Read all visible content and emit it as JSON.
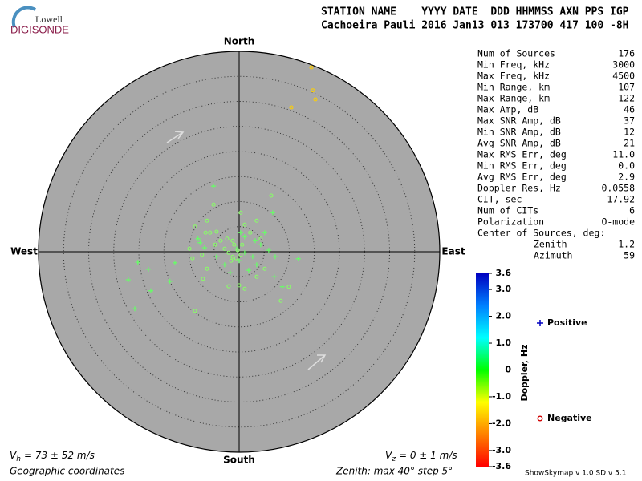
{
  "header": {
    "logo_top": "Lowell",
    "logo_bottom": "DIGISONDE",
    "line1": "STATION NAME    YYYY DATE  DDD HHMMSS AXN PPS IGP",
    "line2": "Cachoeira Pauli 2016 Jan13 013 173700 417 100 -8H"
  },
  "stats": [
    [
      "Num of Sources",
      "176"
    ],
    [
      "Min Freq, kHz",
      "3000"
    ],
    [
      "Max Freq, kHz",
      "4500"
    ],
    [
      "Min Range, km",
      "107"
    ],
    [
      "Max Range, km",
      "122"
    ],
    [
      "Max Amp, dB",
      "46"
    ],
    [
      "Max SNR Amp, dB",
      "37"
    ],
    [
      "Min SNR Amp, dB",
      "12"
    ],
    [
      "Avg SNR Amp, dB",
      "21"
    ],
    [
      "Max RMS Err, deg",
      "11.0"
    ],
    [
      "Min RMS Err, deg",
      "0.0"
    ],
    [
      "Avg RMS Err, deg",
      "2.9"
    ],
    [
      "Doppler Res, Hz",
      "0.0558"
    ],
    [
      "CIT, sec",
      "17.92"
    ],
    [
      "Num of CITs",
      "6"
    ],
    [
      "Polarization",
      "O-mode"
    ]
  ],
  "center": {
    "title": "Center of Sources, deg:",
    "rows": [
      [
        "Zenith",
        "1.2"
      ],
      [
        "Azimuth",
        "59"
      ]
    ]
  },
  "chart_data": {
    "type": "skymap",
    "directions": {
      "north": "North",
      "south": "South",
      "east": "East",
      "west": "West"
    },
    "rlim": [
      0,
      40
    ],
    "rticks": [
      5,
      10,
      15,
      20,
      25,
      30,
      35,
      40
    ],
    "series": [
      {
        "name": "Positive",
        "color": "#0000c0",
        "marker": "plus",
        "x": [
          -5.1,
          -22.1,
          -20.2,
          -18.1,
          -20.8,
          -13.8,
          -17.6,
          -12.8,
          -8.2,
          -7.8,
          -6.9,
          6.7,
          3.2,
          4.3,
          5.9,
          7.2,
          11.8,
          8.6,
          7.0,
          1.9,
          0,
          -1.8,
          -2.9,
          -4.5,
          1.1,
          2.7,
          3.5,
          -0.5,
          0.3,
          1.1,
          5.1
        ],
        "values": [
          13.1,
          -5.6,
          -2.1,
          -3.5,
          -11.4,
          -5.9,
          -7.8,
          -2.2,
          2.6,
          1.8,
          0.8,
          7.8,
          2.2,
          1.4,
          0.3,
          -1.0,
          -1.4,
          -7.0,
          -5.0,
          -3.7,
          -1.8,
          -4.2,
          -2.6,
          -1.0,
          -0.2,
          -1.0,
          -2.6,
          0.6,
          3.8,
          3.0,
          3.8
        ],
        "marker_colors": [
          "#66ff66",
          "#66ff66",
          "#66ff66",
          "#66ff66",
          "#66ff66",
          "#66ff66",
          "#66ff66",
          "#66ff66",
          "#66ff66",
          "#66ff66",
          "#66ff66",
          "#66ff66",
          "#66ff66",
          "#66ff66",
          "#66ff66",
          "#66ff66",
          "#66ff66",
          "#66ff66",
          "#66ff66",
          "#66ff66",
          "#66ff66",
          "#66ff66",
          "#66ff66",
          "#66ff66",
          "#66ff66",
          "#66ff66",
          "#66ff66",
          "#66ff66",
          "#66ff66",
          "#66ff66",
          "#66ff66"
        ]
      },
      {
        "name": "Negative",
        "color": "#d00000",
        "marker": "circle",
        "x": [
          14.4,
          14.7,
          15.2,
          10.4,
          6.4,
          -5.1,
          -6.4,
          -8.8,
          -6.7,
          -5.8,
          -4.5,
          -9.9,
          -9.3,
          -7.4,
          -4.8,
          -3.7,
          -2.4,
          -1.3,
          -1.0,
          -0.3,
          0.3,
          -1.3,
          -2.1,
          -2.9,
          0.3,
          3.5,
          1.1,
          2.2,
          4.3,
          -7.2,
          -6.4,
          -8.8,
          9.9,
          8.3,
          0,
          -2.1,
          1.1,
          3.5,
          5.1,
          0.6,
          -0.6,
          -1.6
        ],
        "values": [
          36.8,
          32.2,
          30.4,
          28.8,
          11.2,
          9.4,
          6.2,
          5.0,
          3.8,
          3.8,
          4.0,
          0.6,
          -1.3,
          -0.6,
          1.4,
          2.2,
          2.6,
          2.2,
          1.4,
          0.3,
          -0.6,
          -1.0,
          -0.2,
          0.6,
          7.8,
          6.2,
          5.4,
          3.8,
          2.6,
          -5.4,
          -3.4,
          -11.8,
          -7.0,
          -9.8,
          -6.7,
          -6.9,
          -7.4,
          -5.0,
          -3.4,
          1.4,
          -1.3,
          -1.8
        ],
        "marker_colors": [
          "#ffd000",
          "#ffd000",
          "#ffd000",
          "#ffd000",
          "#88ff66",
          "#88ff66",
          "#88ff66",
          "#88ff66",
          "#88ff66",
          "#88ff66",
          "#88ff66",
          "#88ff66",
          "#88ff66",
          "#88ff66",
          "#88ff66",
          "#88ff66",
          "#88ff66",
          "#88ff66",
          "#88ff66",
          "#88ff66",
          "#88ff66",
          "#88ff66",
          "#88ff66",
          "#88ff66",
          "#88ff66",
          "#88ff66",
          "#88ff66",
          "#88ff66",
          "#88ff66",
          "#88ff66",
          "#88ff66",
          "#88ff66",
          "#88ff66",
          "#88ff66",
          "#88ff66",
          "#88ff66",
          "#88ff66",
          "#88ff66",
          "#88ff66",
          "#88ff66",
          "#88ff66",
          "#88ff66"
        ]
      }
    ],
    "colorbar": {
      "label": "Doppler, Hz",
      "lim": [
        -3.6,
        3.6
      ],
      "ticks": [
        3.6,
        {
          "value": 3,
          "label": "3.0"
        },
        {
          "value": 2,
          "label": "2.0"
        },
        {
          "value": 1,
          "label": "1.0"
        },
        0,
        {
          "value": -1,
          "label": "-1.0"
        },
        {
          "value": -2,
          "label": "-2.0"
        },
        {
          "value": -3,
          "label": "-3.0"
        },
        -3.6
      ],
      "colors": [
        "#ff0000",
        "#ff8000",
        "#ffff00",
        "#00ff00",
        "#00ffff",
        "#0080ff",
        "#0000c0"
      ]
    }
  },
  "footer": {
    "vh_symbol": "V",
    "vh_sub": "h",
    "vh_text": "= 73 ± 52 m/s",
    "vz_symbol": "V",
    "vz_sub": "z",
    "vz_text": "= 0 ± 1 m/s",
    "coords": "Geographic coordinates",
    "zenith": "Zenith: max 40°  step 5°",
    "version": "ShowSkymap v 1.0  SD v 5.1"
  }
}
